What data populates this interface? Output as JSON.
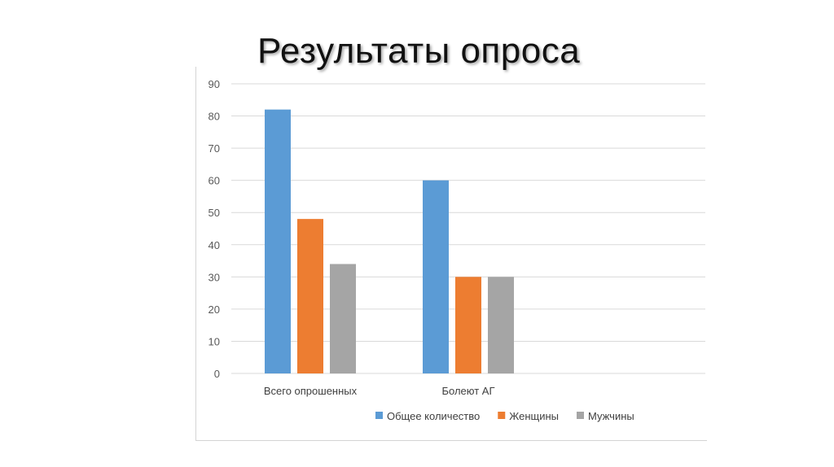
{
  "slide": {
    "title": "Результаты опроса"
  },
  "chart_data": {
    "type": "bar",
    "categories": [
      "Всего опрошенных",
      "Болеют АГ",
      ""
    ],
    "series": [
      {
        "name": "Общее количество",
        "values": [
          82,
          60,
          null
        ],
        "color": "#5B9BD5"
      },
      {
        "name": "Женщины",
        "values": [
          48,
          30,
          null
        ],
        "color": "#ED7D31"
      },
      {
        "name": "Мужчины",
        "values": [
          34,
          30,
          null
        ],
        "color": "#A5A5A5"
      }
    ],
    "yticks": [
      0,
      10,
      20,
      30,
      40,
      50,
      60,
      70,
      80,
      90
    ],
    "ylim": [
      0,
      90
    ],
    "grid": true,
    "legend_position": "bottom",
    "title": "",
    "xlabel": "",
    "ylabel": ""
  }
}
